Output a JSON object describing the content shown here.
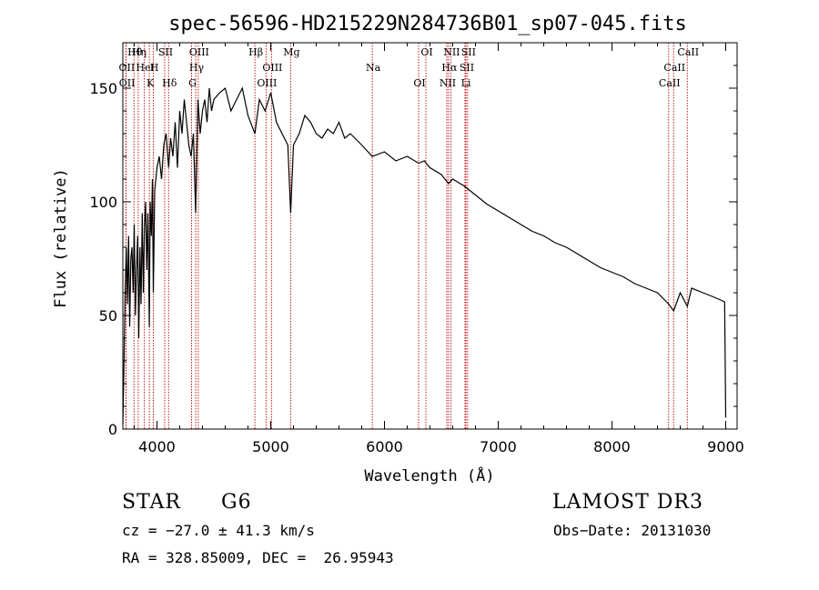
{
  "chart_data": {
    "type": "line",
    "title": "spec-56596-HD215229N284736B01_sp07-045.fits",
    "xlabel": "Wavelength (Å)",
    "ylabel": "Flux (relative)",
    "xlim": [
      3700,
      9100
    ],
    "ylim": [
      0,
      170
    ],
    "xticks": [
      {
        "value": 4000,
        "label": "4000"
      },
      {
        "value": 5000,
        "label": "5000"
      },
      {
        "value": 6000,
        "label": "6000"
      },
      {
        "value": 7000,
        "label": "7000"
      },
      {
        "value": 8000,
        "label": "8000"
      },
      {
        "value": 9000,
        "label": "9000"
      }
    ],
    "yticks": [
      {
        "value": 0,
        "label": "0"
      },
      {
        "value": 50,
        "label": "50"
      },
      {
        "value": 100,
        "label": "100"
      },
      {
        "value": 150,
        "label": "150"
      }
    ],
    "series": [
      {
        "name": "spectrum",
        "x": [
          3700,
          3710,
          3720,
          3730,
          3740,
          3750,
          3760,
          3770,
          3780,
          3790,
          3800,
          3810,
          3820,
          3830,
          3840,
          3850,
          3860,
          3870,
          3880,
          3890,
          3900,
          3910,
          3920,
          3933,
          3940,
          3950,
          3960,
          3968,
          3980,
          3990,
          4000,
          4020,
          4040,
          4060,
          4080,
          4102,
          4120,
          4140,
          4160,
          4180,
          4200,
          4220,
          4240,
          4260,
          4280,
          4300,
          4320,
          4340,
          4360,
          4380,
          4400,
          4420,
          4440,
          4460,
          4480,
          4500,
          4550,
          4600,
          4650,
          4700,
          4750,
          4800,
          4861,
          4900,
          4950,
          5000,
          5050,
          5100,
          5150,
          5175,
          5200,
          5250,
          5300,
          5350,
          5400,
          5450,
          5500,
          5550,
          5600,
          5650,
          5700,
          5800,
          5893,
          6000,
          6100,
          6200,
          6300,
          6350,
          6400,
          6500,
          6563,
          6600,
          6700,
          6800,
          6900,
          7000,
          7100,
          7200,
          7300,
          7400,
          7500,
          7600,
          7700,
          7800,
          7900,
          8000,
          8100,
          8200,
          8300,
          8400,
          8498,
          8542,
          8600,
          8662,
          8700,
          8800,
          8900,
          8990,
          9000
        ],
        "y": [
          2,
          30,
          60,
          80,
          55,
          85,
          45,
          75,
          80,
          60,
          90,
          50,
          70,
          85,
          40,
          80,
          55,
          95,
          60,
          90,
          100,
          70,
          95,
          45,
          100,
          85,
          110,
          60,
          105,
          110,
          115,
          120,
          110,
          125,
          130,
          115,
          128,
          120,
          135,
          115,
          140,
          130,
          145,
          135,
          125,
          120,
          130,
          95,
          145,
          130,
          140,
          145,
          135,
          150,
          140,
          145,
          148,
          150,
          140,
          145,
          150,
          138,
          130,
          145,
          140,
          148,
          135,
          130,
          125,
          95,
          125,
          130,
          138,
          135,
          130,
          128,
          132,
          130,
          135,
          128,
          130,
          125,
          120,
          122,
          118,
          120,
          117,
          118,
          115,
          112,
          108,
          110,
          107,
          103,
          99,
          96,
          93,
          90,
          87,
          85,
          82,
          80,
          77,
          74,
          71,
          69,
          67,
          64,
          62,
          60,
          55,
          52,
          60,
          54,
          62,
          60,
          58,
          56,
          5
        ]
      }
    ],
    "line_markers": [
      {
        "label": "Hθ",
        "x": 3798
      },
      {
        "label": "OII",
        "x": 3727
      },
      {
        "label": "OII",
        "x": 3729
      },
      {
        "label": "Hη",
        "x": 3835
      },
      {
        "label": "HeI",
        "x": 3889
      },
      {
        "label": "K",
        "x": 3933
      },
      {
        "label": "SII",
        "x": 4068
      },
      {
        "label": "H",
        "x": 3968
      },
      {
        "label": "Hδ",
        "x": 4102
      },
      {
        "label": "OIII",
        "x": 4363
      },
      {
        "label": "Hγ",
        "x": 4340
      },
      {
        "label": "G",
        "x": 4304
      },
      {
        "label": "Hβ",
        "x": 4861
      },
      {
        "label": "OIII",
        "x": 5007
      },
      {
        "label": "OIII",
        "x": 4959
      },
      {
        "label": "Mg",
        "x": 5175
      },
      {
        "label": "Na",
        "x": 5893
      },
      {
        "label": "OI",
        "x": 6300
      },
      {
        "label": "OI",
        "x": 6364
      },
      {
        "label": "Hα",
        "x": 6563
      },
      {
        "label": "NII",
        "x": 6548
      },
      {
        "label": "NII",
        "x": 6583
      },
      {
        "label": "SII",
        "x": 6716
      },
      {
        "label": "Li",
        "x": 6708
      },
      {
        "label": "SII",
        "x": 6731
      },
      {
        "label": "CaII",
        "x": 8542
      },
      {
        "label": "CaII",
        "x": 8498
      },
      {
        "label": "CaII",
        "x": 8662
      }
    ]
  },
  "info": {
    "object_class": "STAR",
    "subclass": "G6",
    "survey": "LAMOST DR3",
    "cz": "cz = −27.0 ± 41.3 km/s",
    "obs_date": "Obs−Date: 20131030",
    "coords": "RA = 328.85009, DEC =  26.95943"
  }
}
